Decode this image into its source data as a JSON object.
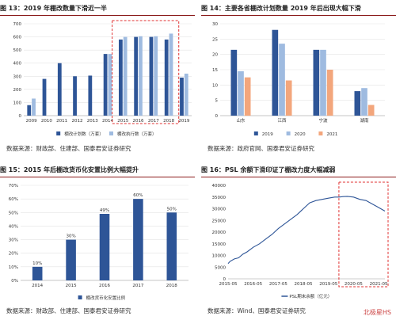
{
  "chart_data": [
    {
      "type": "bar",
      "title": "图 13：2019 年棚改数量下滑近一半",
      "source": "数据来源：财政部、住建部、国泰君安证券研究",
      "categories": [
        "2009",
        "2010",
        "2011",
        "2012",
        "2013",
        "2014",
        "2015",
        "2016",
        "2017",
        "2018",
        "2019"
      ],
      "series": [
        {
          "name": "棚改计划数（万套）",
          "color": "#2e5597",
          "values": [
            80,
            280,
            400,
            300,
            305,
            470,
            580,
            600,
            600,
            580,
            290
          ]
        },
        {
          "name": "棚改执行数（万套）",
          "color": "#9fbbe0",
          "values": [
            130,
            null,
            null,
            null,
            null,
            470,
            600,
            605,
            605,
            625,
            320
          ]
        }
      ],
      "ylim": [
        0,
        700
      ],
      "yticks": [
        0,
        100,
        200,
        300,
        400,
        500,
        600,
        700
      ],
      "grid": true,
      "legend": "bottom"
    },
    {
      "type": "bar",
      "title": "图 14：主要各省棚改计划数量 2019 年后出现大幅下滑",
      "source": "数据来源：政府官网、国泰君安证券研究",
      "categories": [
        "山东",
        "江西",
        "宁波",
        "湖南"
      ],
      "series": [
        {
          "name": "2019",
          "color": "#2e5597",
          "values": [
            21.5,
            28.0,
            21.5,
            8.0
          ]
        },
        {
          "name": "2020",
          "color": "#9fbbe0",
          "values": [
            14.5,
            23.5,
            21.5,
            9.0
          ]
        },
        {
          "name": "2021",
          "color": "#f3a67c",
          "values": [
            12.5,
            11.5,
            15.0,
            3.5
          ]
        }
      ],
      "ylim": [
        0,
        30
      ],
      "yticks": [
        0,
        5,
        10,
        15,
        20,
        25,
        30
      ],
      "grid": true,
      "legend": "bottom"
    },
    {
      "type": "bar",
      "title": "图 15：2015 年后棚改货币化安置比例大幅提升",
      "source": "数据来源：财政部、住建部、国泰君安证券研究",
      "categories": [
        "2014",
        "2015",
        "2016",
        "2017",
        "2018"
      ],
      "series": [
        {
          "name": "棚改货币化安置比例",
          "color": "#2e5597",
          "values": [
            10,
            30,
            49,
            60,
            50
          ]
        }
      ],
      "data_labels": [
        "10%",
        "30%",
        "49%",
        "60%",
        "50%"
      ],
      "ylim": [
        0,
        70
      ],
      "yticks": [
        0,
        10,
        20,
        30,
        40,
        50,
        60,
        70
      ],
      "ytick_labels": [
        "0%",
        "10%",
        "20%",
        "30%",
        "40%",
        "50%",
        "60%",
        "70%"
      ],
      "grid": true,
      "legend": "bottom"
    },
    {
      "type": "line",
      "title": "图 16：PSL 余额下滑印证了棚改力度大幅减弱",
      "source": "数据来源：Wind、国泰君安证券研究",
      "series": [
        {
          "name": "PSL期末余额（亿元）",
          "color": "#2e5597",
          "x": [
            "2015-05",
            "2015-06",
            "2015-08",
            "2015-10",
            "2015-12",
            "2016-02",
            "2016-05",
            "2016-08",
            "2016-11",
            "2017-02",
            "2017-05",
            "2017-08",
            "2017-11",
            "2018-02",
            "2018-05",
            "2018-08",
            "2018-11",
            "2019-02",
            "2019-05",
            "2019-08",
            "2019-10",
            "2019-12",
            "2020-02",
            "2020-05",
            "2020-08",
            "2020-11",
            "2021-02",
            "2021-05",
            "2021-08"
          ],
          "values": [
            6500,
            7500,
            8500,
            9000,
            10500,
            11500,
            13500,
            15000,
            17000,
            19000,
            21500,
            23500,
            25500,
            27500,
            30000,
            32500,
            33500,
            34000,
            34500,
            35000,
            35000,
            35200,
            35300,
            35000,
            34000,
            33500,
            32000,
            30500,
            29000
          ]
        }
      ],
      "xticks": [
        "2015-05",
        "2016-05",
        "2017-05",
        "2018-05",
        "2019-05",
        "2020-05",
        "2021-05"
      ],
      "ylim": [
        0,
        40000
      ],
      "yticks": [
        0,
        5000,
        10000,
        15000,
        20000,
        25000,
        30000,
        35000,
        40000
      ],
      "grid": false,
      "legend": "bottom"
    }
  ],
  "watermark": "北极星HS"
}
